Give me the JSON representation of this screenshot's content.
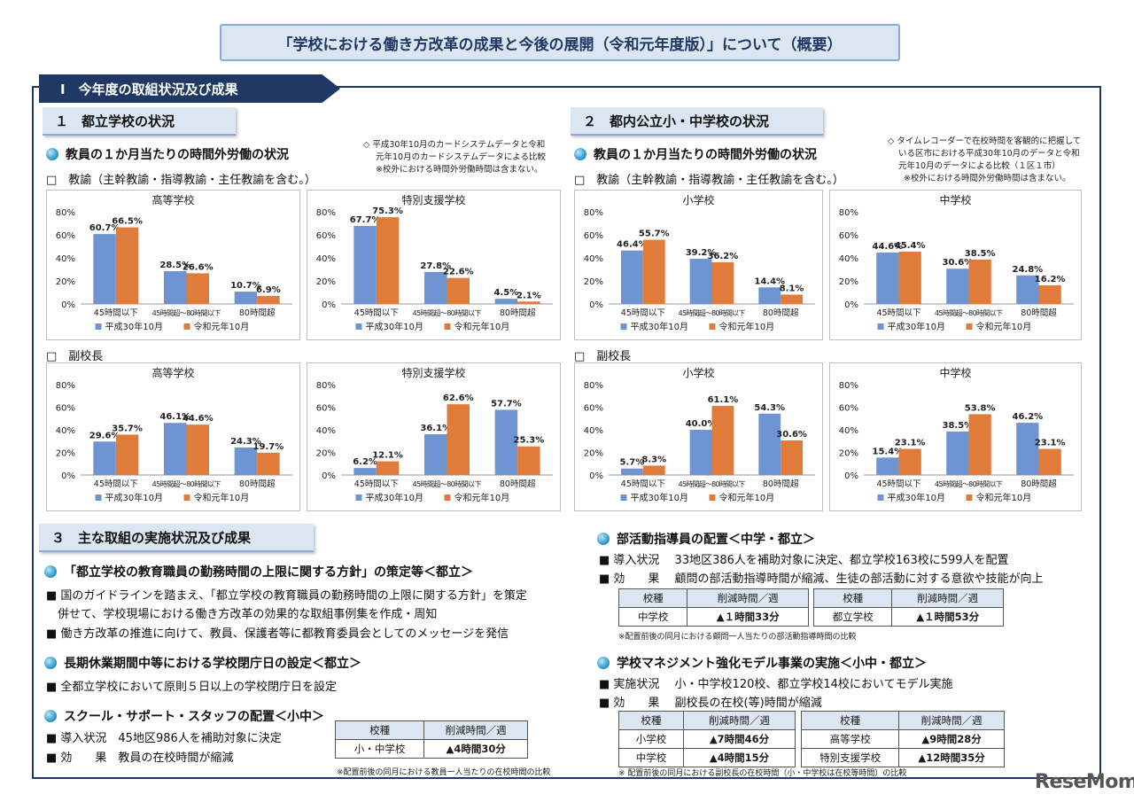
{
  "title": "「学校における働き方改革の成果と今後の展開（令和元年度版）」について（概要）",
  "section1": "Ⅰ　今年度の取組状況及び成果",
  "part1": {
    "heading": "１　都立学校の状況",
    "subheading": "教員の１か月当たりの時間外労働の状況",
    "note": [
      "◇ 平成30年10月のカードシステムデータと令和",
      "元年10月のカードシステムデータによる比較",
      "※校外における時間外労働時間は含まない。"
    ],
    "teachers_label": "□　教諭（主幹教諭・指導教諭・主任教諭を含む。）",
    "vice_label": "□　副校長"
  },
  "part2": {
    "heading": "２　都内公立小・中学校の状況",
    "subheading": "教員の１か月当たりの時間外労働の状況",
    "note": [
      "◇ タイムレコーダーで在校時間を客観的に把握して",
      "いる区市における平成30年10月のデータと令和",
      "元年10月のデータによる比較（１区１市）",
      "※校外における時間外労働時間は含まない。"
    ],
    "teachers_label": "□　教諭（主幹教諭・指導教諭・主任教諭を含む。）",
    "vice_label": "□　副校長"
  },
  "legend": {
    "s1": "平成30年10月",
    "s2": "令和元年10月"
  },
  "colors": {
    "s1": "#6f94d2",
    "s2": "#e07b39",
    "navy": "#1f3864"
  },
  "chart_data": [
    {
      "id": "c1",
      "type": "bar",
      "title": "高等学校",
      "categories": [
        "45時間以下",
        "45時間超～80時間以下",
        "80時間超"
      ],
      "series": [
        {
          "name": "平成30年10月",
          "values": [
            60.7,
            28.5,
            10.7
          ]
        },
        {
          "name": "令和元年10月",
          "values": [
            66.5,
            26.6,
            6.9
          ]
        }
      ],
      "ylim": [
        0,
        80
      ],
      "yticks": [
        "0%",
        "20%",
        "40%",
        "60%",
        "80%"
      ]
    },
    {
      "id": "c2",
      "type": "bar",
      "title": "特別支援学校",
      "categories": [
        "45時間以下",
        "45時間超～80時間以下",
        "80時間超"
      ],
      "series": [
        {
          "name": "平成30年10月",
          "values": [
            67.7,
            27.8,
            4.5
          ]
        },
        {
          "name": "令和元年10月",
          "values": [
            75.3,
            22.6,
            2.1
          ]
        }
      ],
      "ylim": [
        0,
        80
      ],
      "yticks": [
        "0%",
        "20%",
        "40%",
        "60%",
        "80%"
      ]
    },
    {
      "id": "c3",
      "type": "bar",
      "title": "小学校",
      "categories": [
        "45時間以下",
        "45時間超～80時間以下",
        "80時間超"
      ],
      "series": [
        {
          "name": "平成30年10月",
          "values": [
            46.4,
            39.2,
            14.4
          ]
        },
        {
          "name": "令和元年10月",
          "values": [
            55.7,
            36.2,
            8.1
          ]
        }
      ],
      "ylim": [
        0,
        80
      ],
      "yticks": [
        "0%",
        "20%",
        "40%",
        "60%",
        "80%"
      ]
    },
    {
      "id": "c4",
      "type": "bar",
      "title": "中学校",
      "categories": [
        "45時間以下",
        "45時間超～80時間以下",
        "80時間超"
      ],
      "series": [
        {
          "name": "平成30年10月",
          "values": [
            44.6,
            30.6,
            24.8
          ]
        },
        {
          "name": "令和元年10月",
          "values": [
            45.4,
            38.5,
            16.2
          ]
        }
      ],
      "ylim": [
        0,
        80
      ],
      "yticks": [
        "0%",
        "20%",
        "40%",
        "60%",
        "80%"
      ]
    },
    {
      "id": "c5",
      "type": "bar",
      "title": "高等学校",
      "categories": [
        "45時間以下",
        "45時間超～80時間以下",
        "80時間超"
      ],
      "series": [
        {
          "name": "平成30年10月",
          "values": [
            29.6,
            46.1,
            24.3
          ]
        },
        {
          "name": "令和元年10月",
          "values": [
            35.7,
            44.6,
            19.7
          ]
        }
      ],
      "ylim": [
        0,
        80
      ],
      "yticks": [
        "0%",
        "20%",
        "40%",
        "60%",
        "80%"
      ]
    },
    {
      "id": "c6",
      "type": "bar",
      "title": "特別支援学校",
      "categories": [
        "45時間以下",
        "45時間超～80時間以下",
        "80時間超"
      ],
      "series": [
        {
          "name": "平成30年10月",
          "values": [
            6.2,
            36.1,
            57.7
          ]
        },
        {
          "name": "令和元年10月",
          "values": [
            12.1,
            62.6,
            25.3
          ]
        }
      ],
      "ylim": [
        0,
        80
      ],
      "yticks": [
        "0%",
        "20%",
        "40%",
        "60%",
        "80%"
      ]
    },
    {
      "id": "c7",
      "type": "bar",
      "title": "小学校",
      "categories": [
        "45時間以下",
        "45時間超～80時間以下",
        "80時間超"
      ],
      "series": [
        {
          "name": "平成30年10月",
          "values": [
            5.7,
            40.0,
            54.3
          ]
        },
        {
          "name": "令和元年10月",
          "values": [
            8.3,
            61.1,
            30.6
          ]
        }
      ],
      "ylim": [
        0,
        80
      ],
      "yticks": [
        "0%",
        "20%",
        "40%",
        "60%",
        "80%"
      ]
    },
    {
      "id": "c8",
      "type": "bar",
      "title": "中学校",
      "categories": [
        "45時間以下",
        "45時間超～80時間以下",
        "80時間超"
      ],
      "series": [
        {
          "name": "平成30年10月",
          "values": [
            15.4,
            38.5,
            46.2
          ]
        },
        {
          "name": "令和元年10月",
          "values": [
            23.1,
            53.8,
            23.1
          ]
        }
      ],
      "ylim": [
        0,
        80
      ],
      "yticks": [
        "0%",
        "20%",
        "40%",
        "60%",
        "80%"
      ]
    }
  ],
  "part3": {
    "heading": "３　主な取組の実施状況及び成果",
    "item1": {
      "head": "「都立学校の教育職員の勤務時間の上限に関する方針」の策定等＜都立＞",
      "lines": [
        "■ 国のガイドラインを踏まえ、「都立学校の教育職員の勤務時間の上限に関する方針」を策定",
        "　併せて、学校現場における働き方改革の効果的な取組事例集を作成・周知",
        "■ 働き方改革の推進に向けて、教員、保護者等に都教育委員会としてのメッセージを発信"
      ]
    },
    "item2": {
      "head": "長期休業期間中等における学校閉庁日の設定＜都立＞",
      "lines": [
        "■ 全都立学校において原則５日以上の学校閉庁日を設定"
      ]
    },
    "item3": {
      "head": "スクール・サポート・スタッフの配置＜小中＞",
      "lines": [
        "■ 導入状況　45地区986人を補助対象に決定",
        "■ 効　　果　教員の在校時間が縮減"
      ],
      "table": {
        "h1": "校種",
        "h2": "削減時間／週",
        "r1c1": "小・中学校",
        "r1c2": "▲4時間30分"
      },
      "note": "※配置前後の同月における教員一人当たりの在校時間の比較"
    },
    "item4": {
      "head": "部活動指導員の配置＜中学・都立＞",
      "lines": [
        "■ 導入状況　 33地区386人を補助対象に決定、都立学校163校に599人を配置",
        "■ 効　　果　 顧問の部活動指導時間が縮減、生徒の部活動に対する意欲や技能が向上"
      ],
      "tableA": {
        "h1": "校種",
        "h2": "削減時間／週",
        "r1c1": "中学校",
        "r1c2": "▲１時間33分"
      },
      "tableB": {
        "h1": "校種",
        "h2": "削減時間／週",
        "r1c1": "都立学校",
        "r1c2": "▲１時間53分"
      },
      "note": "※配置前後の同月における顧問一人当たりの部活動指導時間の比較"
    },
    "item5": {
      "head": "学校マネジメント強化モデル事業の実施＜小中・都立＞",
      "lines": [
        "■ 実施状況　 小・中学校120校、都立学校14校においてモデル実施",
        "■ 効　　果　 副校長の在校(等)時間が縮減"
      ],
      "tableA": {
        "h1": "校種",
        "h2": "削減時間／週",
        "r1c1": "小学校",
        "r1c2": "▲7時間46分",
        "r2c1": "中学校",
        "r2c2": "▲4時間15分"
      },
      "tableB": {
        "h1": "校種",
        "h2": "削減時間／週",
        "r1c1": "高等学校",
        "r1c2": "▲9時間28分",
        "r2c1": "特別支援学校",
        "r2c2": "▲12時間35分"
      },
      "note": "※ 配置前後の同月における副校長の在校時間（小・中学校は在校等時間）の比較"
    }
  },
  "logo": "ReseMom"
}
